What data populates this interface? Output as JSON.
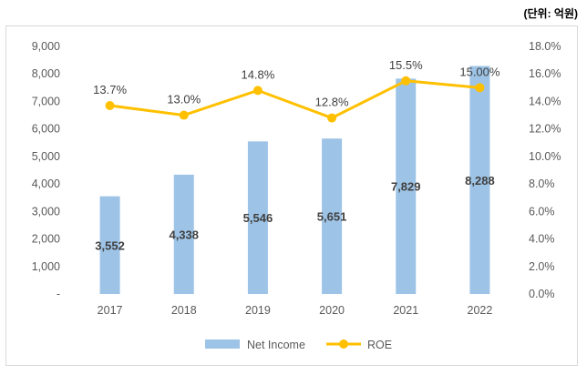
{
  "unit_note": "(단위: 억원)",
  "chart_data": {
    "type": "bar+line",
    "categories": [
      "2017",
      "2018",
      "2019",
      "2020",
      "2021",
      "2022"
    ],
    "series": [
      {
        "name": "Net Income",
        "type": "bar",
        "axis": "left",
        "values": [
          3552,
          4338,
          5546,
          5651,
          7829,
          8288
        ],
        "labels": [
          "3,552",
          "4,338",
          "5,546",
          "5,651",
          "7,829",
          "8,288"
        ],
        "color": "#9dc3e6"
      },
      {
        "name": "ROE",
        "type": "line",
        "axis": "right",
        "values": [
          13.7,
          13.0,
          14.8,
          12.8,
          15.5,
          15.0
        ],
        "labels": [
          "13.7%",
          "13.0%",
          "14.8%",
          "12.8%",
          "15.5%",
          "15.00%"
        ],
        "color": "#ffc000"
      }
    ],
    "y_left": {
      "min": 0,
      "max": 9000,
      "step": 1000,
      "tick_labels": [
        "-",
        "1,000",
        "2,000",
        "3,000",
        "4,000",
        "5,000",
        "6,000",
        "7,000",
        "8,000",
        "9,000"
      ]
    },
    "y_right": {
      "min": 0,
      "max": 18,
      "step": 2,
      "tick_labels": [
        "0.0%",
        "2.0%",
        "4.0%",
        "6.0%",
        "8.0%",
        "10.0%",
        "12.0%",
        "14.0%",
        "16.0%",
        "18.0%"
      ]
    },
    "legend": {
      "position": "bottom",
      "entries": [
        "Net Income",
        "ROE"
      ]
    },
    "grid": false
  }
}
